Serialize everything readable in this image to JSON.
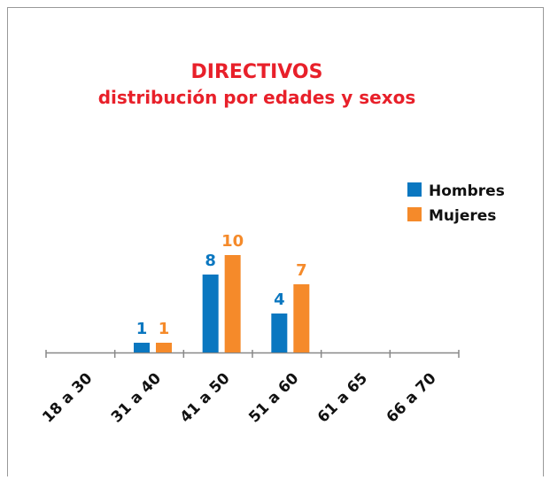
{
  "chart_data": {
    "type": "bar",
    "title": "DIRECTIVOS",
    "subtitle": "distribución por edades y sexos",
    "categories": [
      "18 a 30",
      "31 a 40",
      "41 a 50",
      "51 a 60",
      "61 a 65",
      "66 a 70"
    ],
    "series": [
      {
        "name": "Hombres",
        "color": "#0a77c0",
        "values": [
          null,
          1,
          8,
          4,
          null,
          null
        ]
      },
      {
        "name": "Mujeres",
        "color": "#f58a2a",
        "values": [
          null,
          1,
          10,
          7,
          null,
          null
        ]
      }
    ],
    "legend": "right"
  }
}
